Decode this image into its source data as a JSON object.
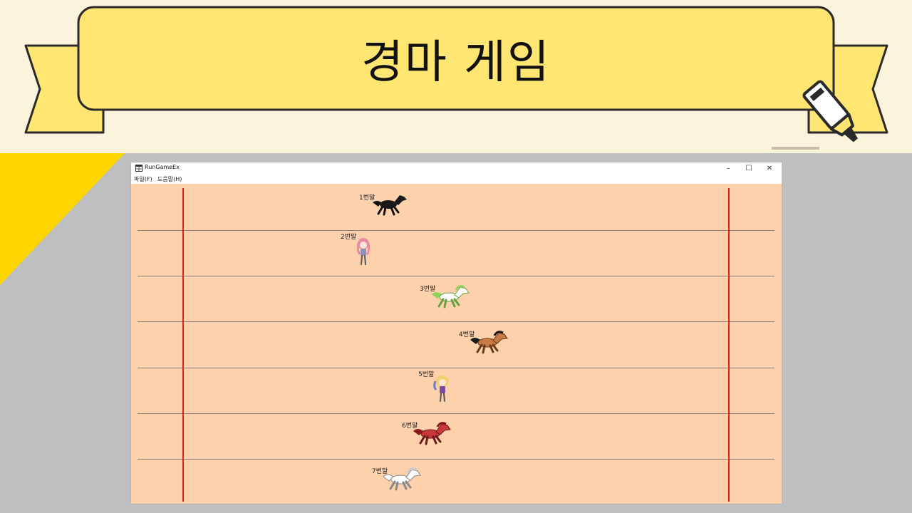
{
  "slide": {
    "title": "경마 게임",
    "banner_color": "#ffe571",
    "background_color": "#fcf3dc",
    "accent_triangle_color": "#ffd500",
    "marker_icon": "highlighter-marker-icon"
  },
  "window": {
    "title": "RunGameEx",
    "icon": "app-window-icon",
    "controls": {
      "minimize": "–",
      "maximize": "☐",
      "close": "✕"
    },
    "menu": [
      "파일(F)",
      "도움말(H)"
    ]
  },
  "race": {
    "track_color": "#fed1ad",
    "line_color": "#e0201a",
    "horses": [
      {
        "label": "1번말",
        "kind": "black-horse-icon",
        "color": "#1a1a1a"
      },
      {
        "label": "2번말",
        "kind": "pink-girl-runner-icon",
        "color": "#e88aa0"
      },
      {
        "label": "3번말",
        "kind": "green-horse-icon",
        "color": "#8ed45a"
      },
      {
        "label": "4번말",
        "kind": "brown-horse-icon",
        "color": "#c87a45"
      },
      {
        "label": "5번말",
        "kind": "blonde-girl-runner-icon",
        "color": "#f0d070"
      },
      {
        "label": "6번말",
        "kind": "red-horse-icon",
        "color": "#c8383a"
      },
      {
        "label": "7번말",
        "kind": "white-horse-icon",
        "color": "#ffffff"
      }
    ]
  }
}
